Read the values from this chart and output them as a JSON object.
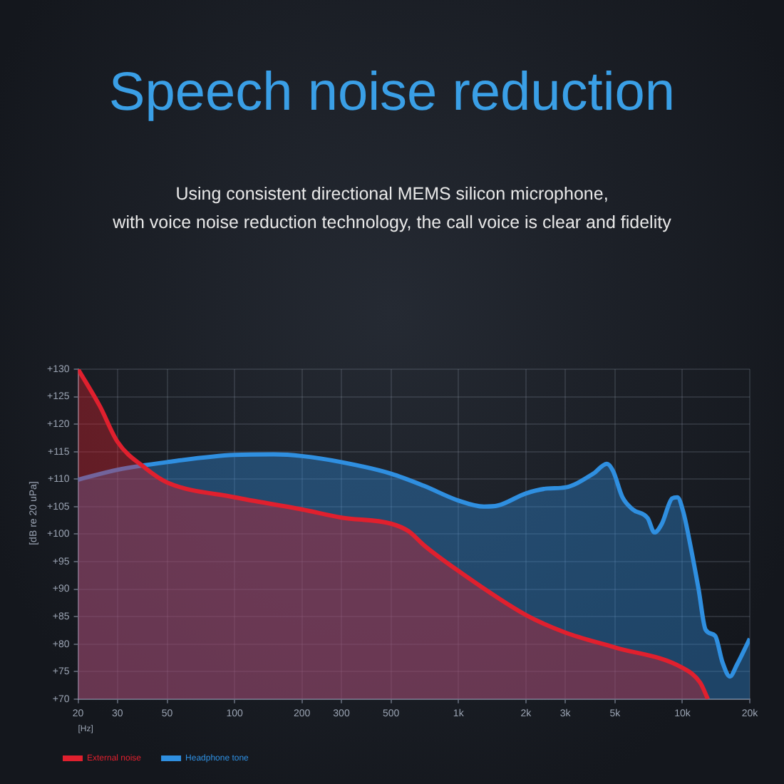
{
  "chart_data": {
    "type": "area",
    "title": "Speech noise reduction",
    "subtitle": "Using consistent directional MEMS silicon microphone,\nwith voice noise reduction technology, the call voice is clear and fidelity",
    "xlabel": "[Hz]",
    "ylabel": "[dB re 20 uPa]",
    "log": "x",
    "xlim": [
      20,
      20000
    ],
    "xticks": [
      20,
      30,
      50,
      100,
      200,
      300,
      500,
      {
        "value": 1000,
        "label": "1k"
      },
      {
        "value": 2000,
        "label": "2k"
      },
      {
        "value": 3000,
        "label": "3k"
      },
      {
        "value": 5000,
        "label": "5k"
      },
      {
        "value": 10000,
        "label": "10k"
      },
      {
        "value": 20000,
        "label": "20k"
      }
    ],
    "ylim": [
      70,
      130
    ],
    "yticks": [
      {
        "value": 70,
        "label": "+70"
      },
      {
        "value": 75,
        "label": "+75"
      },
      {
        "value": 80,
        "label": "+80"
      },
      {
        "value": 85,
        "label": "+85"
      },
      {
        "value": 90,
        "label": "+90"
      },
      {
        "value": 95,
        "label": "+95"
      },
      {
        "value": 100,
        "label": "+100"
      },
      {
        "value": 105,
        "label": "+105"
      },
      {
        "value": 110,
        "label": "+110"
      },
      {
        "value": 115,
        "label": "+115"
      },
      {
        "value": 120,
        "label": "+120"
      },
      {
        "value": 125,
        "label": "+125"
      },
      {
        "value": 130,
        "label": "+130"
      }
    ],
    "grid": true,
    "legend": "bottom",
    "series": [
      {
        "name": "External noise",
        "color": "#e0202e",
        "x": [
          20,
          25,
          30,
          40,
          50,
          100,
          200,
          300,
          500,
          600,
          700,
          1000,
          2000,
          3000,
          5000,
          10000,
          12000,
          13000
        ],
        "values": [
          130,
          123.3,
          116.8,
          112,
          109.4,
          106.7,
          104.5,
          103,
          101.9,
          100.5,
          98,
          93.3,
          85.3,
          82.1,
          79.4,
          75.7,
          73,
          70
        ]
      },
      {
        "name": "Headphone tone",
        "color": "#2f8fe0",
        "x": [
          20,
          30,
          50,
          100,
          150,
          200,
          300,
          500,
          700,
          1000,
          1300,
          1500,
          2000,
          2500,
          3000,
          4000,
          4600,
          4900,
          5400,
          6000,
          7000,
          7500,
          8100,
          9000,
          9500,
          10100,
          10900,
          11800,
          12700,
          14000,
          15100,
          16300,
          17500,
          20000
        ],
        "values": [
          109.9,
          111.7,
          113.1,
          114.4,
          114.5,
          114.2,
          113.1,
          111,
          108.8,
          106.1,
          105,
          105.2,
          107.4,
          108.3,
          108.5,
          111,
          112.8,
          111.5,
          106.7,
          104.5,
          102.9,
          100.3,
          101.9,
          106.5,
          106.7,
          104,
          97.6,
          90.1,
          82.6,
          81.5,
          76.7,
          74.1,
          76.2,
          81
        ]
      }
    ]
  }
}
